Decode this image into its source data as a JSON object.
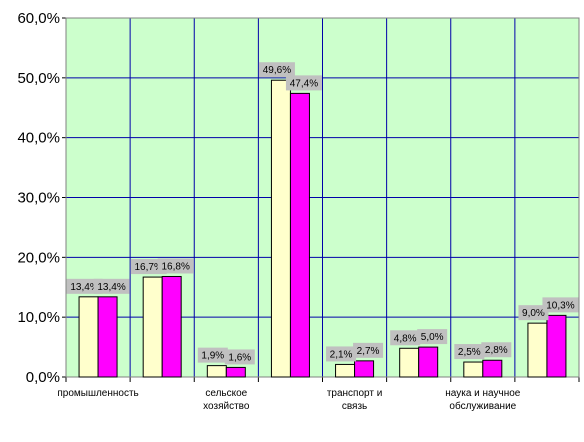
{
  "chart_data": {
    "type": "bar",
    "categories": [
      [
        "промышленность"
      ],
      [
        ""
      ],
      [
        "сельское",
        "хозяйство"
      ],
      [
        ""
      ],
      [
        "транспорт и",
        "связь"
      ],
      [
        ""
      ],
      [
        "наука и научное",
        "обслуживание"
      ],
      [
        ""
      ]
    ],
    "series": [
      {
        "color": "#ffffcc",
        "values": [
          13.4,
          16.7,
          1.9,
          49.6,
          2.1,
          4.8,
          2.5,
          9.0
        ],
        "labels": [
          "13,4%",
          "16,7%",
          "1,9%",
          "49,6%",
          "2,1%",
          "4,8%",
          "2,5%",
          "9,0%"
        ]
      },
      {
        "color": "#ff00ff",
        "values": [
          13.4,
          16.8,
          1.6,
          47.4,
          2.7,
          5.0,
          2.8,
          10.3
        ],
        "labels": [
          "13,4%",
          "16,8%",
          "1,6%",
          "47,4%",
          "2,7%",
          "5,0%",
          "2,8%",
          "10,3%"
        ]
      }
    ],
    "ylim": [
      0,
      60
    ],
    "yticks": [
      {
        "value": 0,
        "label": "0,0%"
      },
      {
        "value": 10,
        "label": "10,0%"
      },
      {
        "value": 20,
        "label": "20,0%"
      },
      {
        "value": 30,
        "label": "30,0%"
      },
      {
        "value": 40,
        "label": "40,0%"
      },
      {
        "value": 50,
        "label": "50,0%"
      },
      {
        "value": 60,
        "label": "60,0%"
      }
    ],
    "grid": true,
    "legend": "none",
    "plot_background": "#ccffcc",
    "grid_color": "#0000aa",
    "data_label_background": "#c0c0c0"
  }
}
